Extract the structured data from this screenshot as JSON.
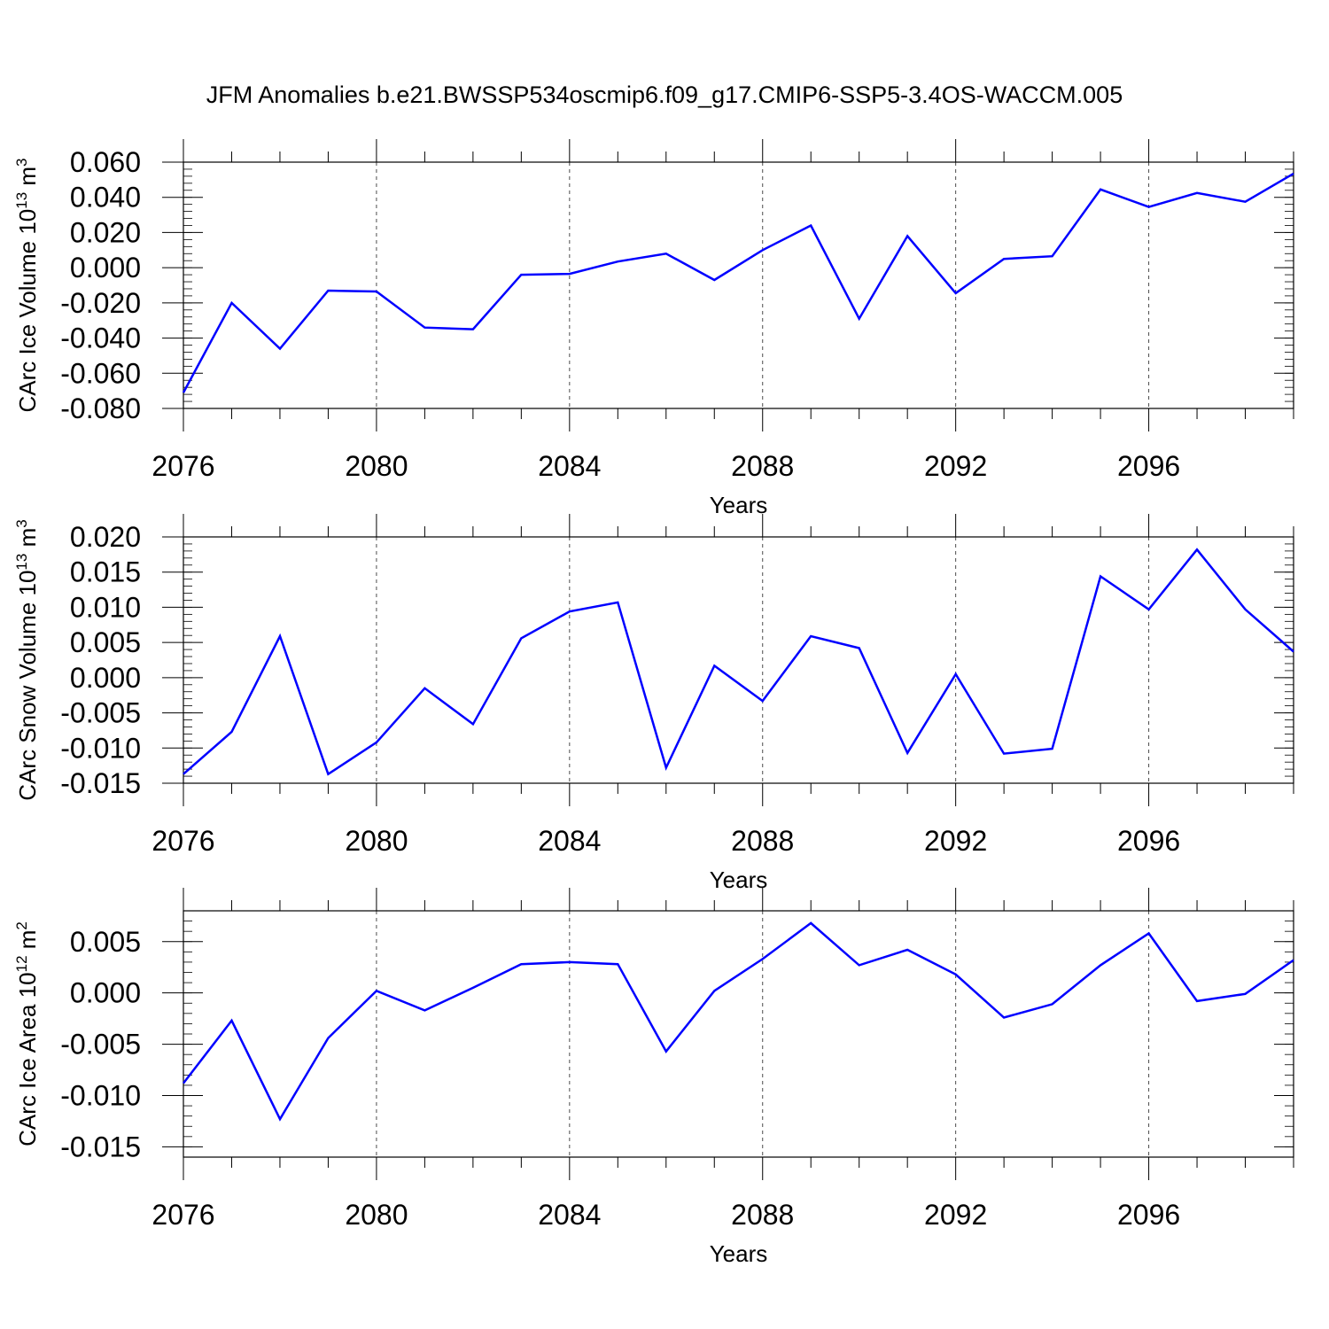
{
  "title": "JFM Anomalies b.e21.BWSSP534oscmip6.f09_g17.CMIP6-SSP5-3.4OS-WACCM.005",
  "chart_data": [
    {
      "type": "line",
      "xlabel": "Years",
      "ylabel": {
        "text": "CArc Ice Volume 10",
        "exp": "13",
        "unit": " m",
        "unit_exp": "3"
      },
      "xlim": [
        2076,
        2099
      ],
      "ylim": [
        -0.08,
        0.06
      ],
      "xticks": [
        2076,
        2080,
        2084,
        2088,
        2092,
        2096
      ],
      "xtick_labels": [
        "2076",
        "2080",
        "2084",
        "2088",
        "2092",
        "2096"
      ],
      "yticks": [
        -0.08,
        -0.06,
        -0.04,
        -0.02,
        0.0,
        0.02,
        0.04,
        0.06
      ],
      "ytick_labels": [
        "-0.080",
        "-0.060",
        "-0.040",
        "-0.020",
        "0.000",
        "0.020",
        "0.040",
        "0.060"
      ],
      "grid": "vertical-dashed",
      "color": "#0000ff",
      "x": [
        2076,
        2077,
        2078,
        2079,
        2080,
        2081,
        2082,
        2083,
        2084,
        2085,
        2086,
        2087,
        2088,
        2089,
        2090,
        2091,
        2092,
        2093,
        2094,
        2095,
        2096,
        2097,
        2098,
        2099
      ],
      "y": [
        -0.071,
        -0.02,
        -0.046,
        -0.013,
        -0.0135,
        -0.034,
        -0.035,
        -0.004,
        -0.0035,
        0.0035,
        0.008,
        -0.007,
        0.01,
        0.024,
        -0.029,
        0.018,
        -0.0145,
        0.005,
        0.0065,
        0.0445,
        0.0345,
        0.0425,
        0.0375,
        0.0535
      ]
    },
    {
      "type": "line",
      "xlabel": "Years",
      "ylabel": {
        "text": "CArc Snow Volume 10",
        "exp": "13",
        "unit": " m",
        "unit_exp": "3"
      },
      "xlim": [
        2076,
        2099
      ],
      "ylim": [
        -0.015,
        0.02
      ],
      "xticks": [
        2076,
        2080,
        2084,
        2088,
        2092,
        2096
      ],
      "xtick_labels": [
        "2076",
        "2080",
        "2084",
        "2088",
        "2092",
        "2096"
      ],
      "yticks": [
        -0.015,
        -0.01,
        -0.005,
        0.0,
        0.005,
        0.01,
        0.015,
        0.02
      ],
      "ytick_labels": [
        "-0.015",
        "-0.010",
        "-0.005",
        "0.000",
        "0.005",
        "0.010",
        "0.015",
        "0.020"
      ],
      "grid": "vertical-dashed",
      "color": "#0000ff",
      "x": [
        2076,
        2077,
        2078,
        2079,
        2080,
        2081,
        2082,
        2083,
        2084,
        2085,
        2086,
        2087,
        2088,
        2089,
        2090,
        2091,
        2092,
        2093,
        2094,
        2095,
        2096,
        2097,
        2098,
        2099
      ],
      "y": [
        -0.0137,
        -0.0077,
        0.0059,
        -0.0137,
        -0.0092,
        -0.0015,
        -0.0066,
        0.0056,
        0.0094,
        0.0107,
        -0.0128,
        0.0017,
        -0.0033,
        0.0059,
        0.0042,
        -0.0107,
        0.0005,
        -0.0108,
        -0.0101,
        0.0144,
        0.0097,
        0.0182,
        0.0097,
        0.0037
      ]
    },
    {
      "type": "line",
      "xlabel": "Years",
      "ylabel": {
        "text": "CArc Ice Area 10",
        "exp": "12",
        "unit": " m",
        "unit_exp": "2"
      },
      "xlim": [
        2076,
        2099
      ],
      "ylim": [
        -0.016,
        0.008
      ],
      "xticks": [
        2076,
        2080,
        2084,
        2088,
        2092,
        2096
      ],
      "xtick_labels": [
        "2076",
        "2080",
        "2084",
        "2088",
        "2092",
        "2096"
      ],
      "yticks": [
        -0.015,
        -0.01,
        -0.005,
        0.0,
        0.005
      ],
      "ytick_labels": [
        "-0.015",
        "-0.010",
        "-0.005",
        "0.000",
        "0.005"
      ],
      "grid": "vertical-dashed",
      "color": "#0000ff",
      "x": [
        2076,
        2077,
        2078,
        2079,
        2080,
        2081,
        2082,
        2083,
        2084,
        2085,
        2086,
        2087,
        2088,
        2089,
        2090,
        2091,
        2092,
        2093,
        2094,
        2095,
        2096,
        2097,
        2098,
        2099
      ],
      "y": [
        -0.0088,
        -0.0027,
        -0.0123,
        -0.0044,
        0.0002,
        -0.0017,
        0.0005,
        0.0028,
        0.003,
        0.0028,
        -0.0057,
        0.0002,
        0.0033,
        0.0068,
        0.0027,
        0.0042,
        0.0018,
        -0.0024,
        -0.0011,
        0.0027,
        0.0058,
        -0.0008,
        -0.0001,
        0.0032
      ]
    }
  ]
}
